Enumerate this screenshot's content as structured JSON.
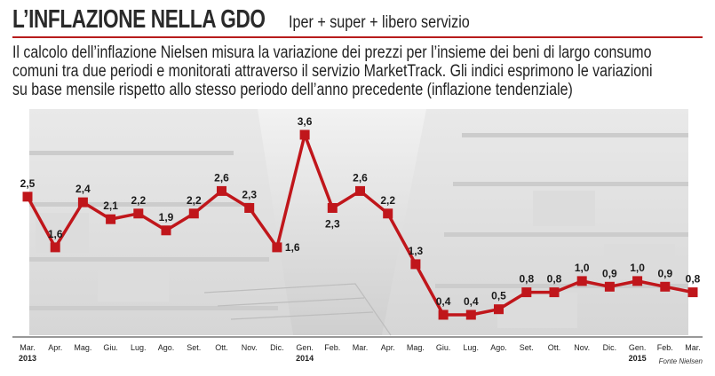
{
  "header": {
    "title": "L’INFLAZIONE NELLA GDO",
    "subtitle": "Iper + super + libero servizio",
    "description": "Il calcolo dell’inflazione Nielsen misura la variazione dei prezzi per l’insieme dei beni di largo consumo comuni tra due periodi e monitorati attraverso il servizio MarketTrack. Gli indici esprimono le variazioni su base mensile rispetto allo stesso periodo dell’anno precedente (inflazione tendenziale)"
  },
  "source": "Fonte Nielsen",
  "colors": {
    "line": "#c0161b",
    "marker": "#c0161b",
    "accent": "#b71c1c"
  },
  "chart_data": {
    "type": "line",
    "categories": [
      "Mar.",
      "Apr.",
      "Mag.",
      "Giu.",
      "Lug.",
      "Ago.",
      "Set.",
      "Ott.",
      "Nov.",
      "Dic.",
      "Gen.",
      "Feb.",
      "Mar.",
      "Apr.",
      "Mag.",
      "Giu.",
      "Lug.",
      "Ago.",
      "Set.",
      "Ott.",
      "Nov.",
      "Dic.",
      "Gen.",
      "Feb.",
      "Mar."
    ],
    "year_labels": [
      {
        "index": 0,
        "label": "2013"
      },
      {
        "index": 10,
        "label": "2014"
      },
      {
        "index": 22,
        "label": "2015"
      }
    ],
    "values": [
      2.5,
      1.6,
      2.4,
      2.1,
      2.2,
      1.9,
      2.2,
      2.6,
      2.3,
      1.6,
      3.6,
      2.3,
      2.6,
      2.2,
      1.3,
      0.4,
      0.4,
      0.5,
      0.8,
      0.8,
      1.0,
      0.9,
      1.0,
      0.9,
      0.8
    ],
    "value_labels": [
      "2,5",
      "1,6",
      "2,4",
      "2,1",
      "2,2",
      "1,9",
      "2,2",
      "2,6",
      "2,3",
      "1,6",
      "3,6",
      "2,3",
      "2,6",
      "2,2",
      "1,3",
      "0,4",
      "0,4",
      "0,5",
      "0,8",
      "0,8",
      "1,0",
      "0,9",
      "1,0",
      "0,9",
      "0,8"
    ],
    "label_position": [
      "above",
      "above",
      "above",
      "above",
      "above",
      "above",
      "above",
      "above",
      "above",
      "right",
      "above",
      "below",
      "above",
      "above",
      "above",
      "above",
      "above",
      "above",
      "above",
      "above",
      "above",
      "above",
      "above",
      "above",
      "above"
    ],
    "xlabel": "",
    "ylabel": "",
    "ylim": [
      0.4,
      3.6
    ],
    "grid": false
  }
}
